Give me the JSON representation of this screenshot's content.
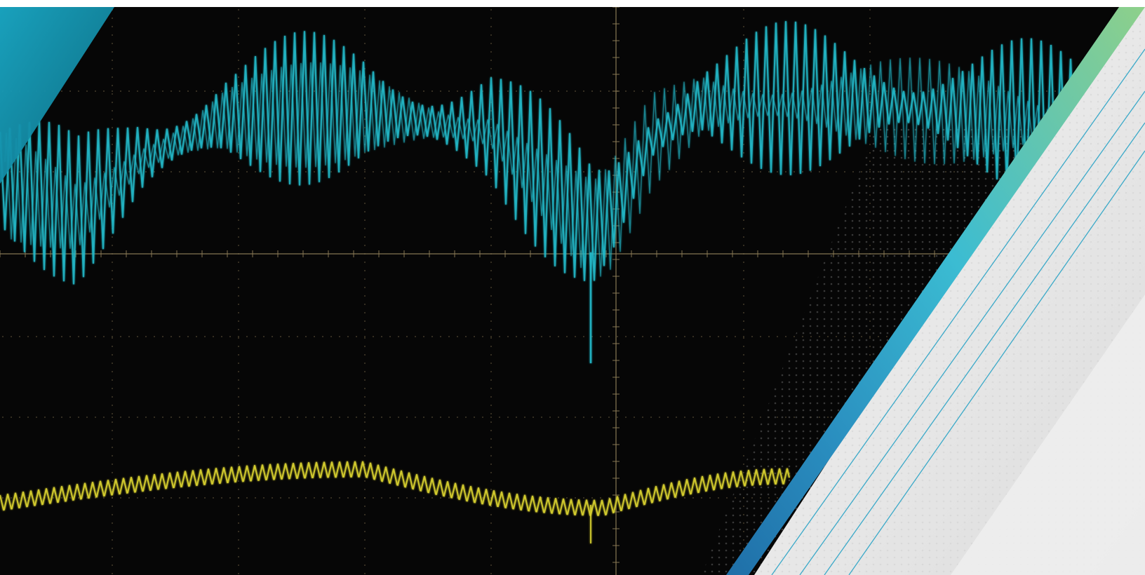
{
  "scene": {
    "kind": "oscilloscope-waveform-banner",
    "background_color": "#060606",
    "graticule_color": "#8a7a55",
    "dot_pattern_color": "#5a5a5a",
    "traces": [
      {
        "name": "",
        "color": "#22b8c8",
        "style": "dense high-frequency oscillation with slow envelope"
      },
      {
        "name": "",
        "color": "#d8d030",
        "style": "small ripple on slow wave"
      }
    ],
    "accent_gradient": [
      "#8ed08a",
      "#3bbcd2",
      "#2a8fc0",
      "#1f6fa8"
    ],
    "stripe_color": "#1d9fc4",
    "panel_color": "#ececec",
    "corner_triangle_color": "#17a6c4"
  }
}
